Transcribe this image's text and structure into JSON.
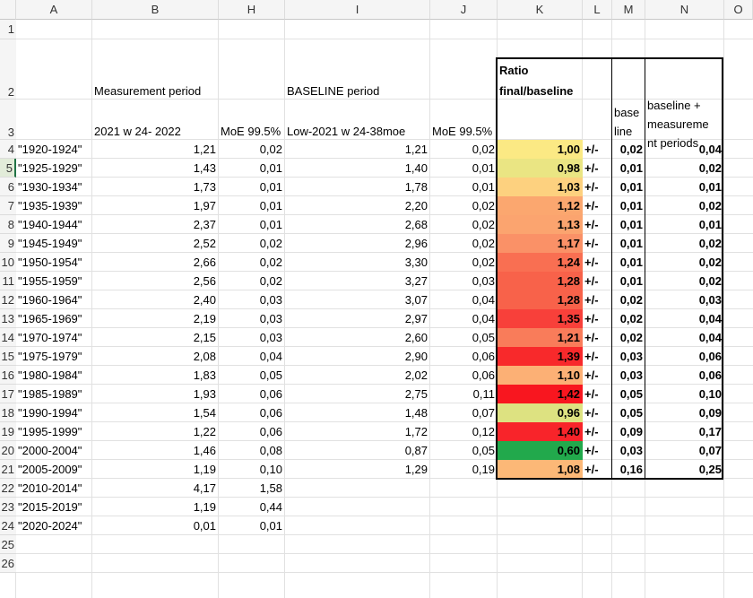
{
  "columns": [
    "A",
    "B",
    "H",
    "I",
    "J",
    "K",
    "L",
    "M",
    "N",
    "O"
  ],
  "rows": [
    "1",
    "2",
    "3",
    "4",
    "5",
    "6",
    "7",
    "8",
    "9",
    "10",
    "11",
    "12",
    "13",
    "14",
    "15",
    "16",
    "17",
    "18",
    "19",
    "20",
    "21",
    "22",
    "23",
    "24",
    "25",
    "26"
  ],
  "headers": {
    "measurement_period": "Measurement period",
    "baseline_period": "BASELINE period",
    "ratio_line1": "Ratio",
    "ratio_line2": "final/baseline",
    "meas_range": "2021 w 24- 2022",
    "moe1": "MoE 99.5%",
    "baseline_range": "Low-2021 w 24-38moe",
    "moe2": "MoE 99.5%",
    "base_line1": "base",
    "base_line2": "line",
    "bm_line1": "baseline +",
    "bm_line2": "measureme",
    "bm_line3": "nt periods"
  },
  "pm_label": "+/-",
  "data_rows": [
    {
      "age": "\"1920-1924\"",
      "b": "1,21",
      "h": "0,02",
      "i": "1,21",
      "j": "0,02",
      "k": "1,00",
      "m": "0,02",
      "n": "0,04",
      "color": "#fbe984"
    },
    {
      "age": "\"1925-1929\"",
      "b": "1,43",
      "h": "0,01",
      "i": "1,40",
      "j": "0,01",
      "k": "0,98",
      "m": "0,01",
      "n": "0,02",
      "color": "#eae583"
    },
    {
      "age": "\"1930-1934\"",
      "b": "1,73",
      "h": "0,01",
      "i": "1,78",
      "j": "0,01",
      "k": "1,03",
      "m": "0,01",
      "n": "0,01",
      "color": "#fdd17f"
    },
    {
      "age": "\"1935-1939\"",
      "b": "1,97",
      "h": "0,01",
      "i": "2,20",
      "j": "0,02",
      "k": "1,12",
      "m": "0,01",
      "n": "0,02",
      "color": "#fba76f"
    },
    {
      "age": "\"1940-1944\"",
      "b": "2,37",
      "h": "0,01",
      "i": "2,68",
      "j": "0,02",
      "k": "1,13",
      "m": "0,01",
      "n": "0,01",
      "color": "#fba46f"
    },
    {
      "age": "\"1945-1949\"",
      "b": "2,52",
      "h": "0,02",
      "i": "2,96",
      "j": "0,02",
      "k": "1,17",
      "m": "0,01",
      "n": "0,02",
      "color": "#fa9167"
    },
    {
      "age": "\"1950-1954\"",
      "b": "2,66",
      "h": "0,02",
      "i": "3,30",
      "j": "0,02",
      "k": "1,24",
      "m": "0,01",
      "n": "0,02",
      "color": "#f96f52"
    },
    {
      "age": "\"1955-1959\"",
      "b": "2,56",
      "h": "0,02",
      "i": "3,27",
      "j": "0,03",
      "k": "1,28",
      "m": "0,01",
      "n": "0,02",
      "color": "#f8624a"
    },
    {
      "age": "\"1960-1964\"",
      "b": "2,40",
      "h": "0,03",
      "i": "3,07",
      "j": "0,04",
      "k": "1,28",
      "m": "0,02",
      "n": "0,03",
      "color": "#f8624a"
    },
    {
      "age": "\"1965-1969\"",
      "b": "2,19",
      "h": "0,03",
      "i": "2,97",
      "j": "0,04",
      "k": "1,35",
      "m": "0,02",
      "n": "0,04",
      "color": "#f8403a"
    },
    {
      "age": "\"1970-1974\"",
      "b": "2,15",
      "h": "0,03",
      "i": "2,60",
      "j": "0,05",
      "k": "1,21",
      "m": "0,02",
      "n": "0,04",
      "color": "#f97c5a"
    },
    {
      "age": "\"1975-1979\"",
      "b": "2,08",
      "h": "0,04",
      "i": "2,90",
      "j": "0,06",
      "k": "1,39",
      "m": "0,03",
      "n": "0,06",
      "color": "#f8292b"
    },
    {
      "age": "\"1980-1984\"",
      "b": "1,83",
      "h": "0,05",
      "i": "2,02",
      "j": "0,06",
      "k": "1,10",
      "m": "0,03",
      "n": "0,06",
      "color": "#fcb075"
    },
    {
      "age": "\"1985-1989\"",
      "b": "1,93",
      "h": "0,06",
      "i": "2,75",
      "j": "0,11",
      "k": "1,42",
      "m": "0,05",
      "n": "0,10",
      "color": "#f8161f"
    },
    {
      "age": "\"1990-1994\"",
      "b": "1,54",
      "h": "0,06",
      "i": "1,48",
      "j": "0,07",
      "k": "0,96",
      "m": "0,05",
      "n": "0,09",
      "color": "#dde281"
    },
    {
      "age": "\"1995-1999\"",
      "b": "1,22",
      "h": "0,06",
      "i": "1,72",
      "j": "0,12",
      "k": "1,40",
      "m": "0,09",
      "n": "0,17",
      "color": "#f8242a"
    },
    {
      "age": "\"2000-2004\"",
      "b": "1,46",
      "h": "0,08",
      "i": "0,87",
      "j": "0,05",
      "k": "0,60",
      "m": "0,03",
      "n": "0,07",
      "color": "#22a94c"
    },
    {
      "age": "\"2005-2009\"",
      "b": "1,19",
      "h": "0,10",
      "i": "1,29",
      "j": "0,19",
      "k": "1,08",
      "m": "0,16",
      "n": "0,25",
      "color": "#fcb877"
    },
    {
      "age": "\"2010-2014\"",
      "b": "4,17",
      "h": "1,58"
    },
    {
      "age": "\"2015-2019\"",
      "b": "1,19",
      "h": "0,44"
    },
    {
      "age": "\"2020-2024\"",
      "b": "0,01",
      "h": "0,01"
    }
  ]
}
